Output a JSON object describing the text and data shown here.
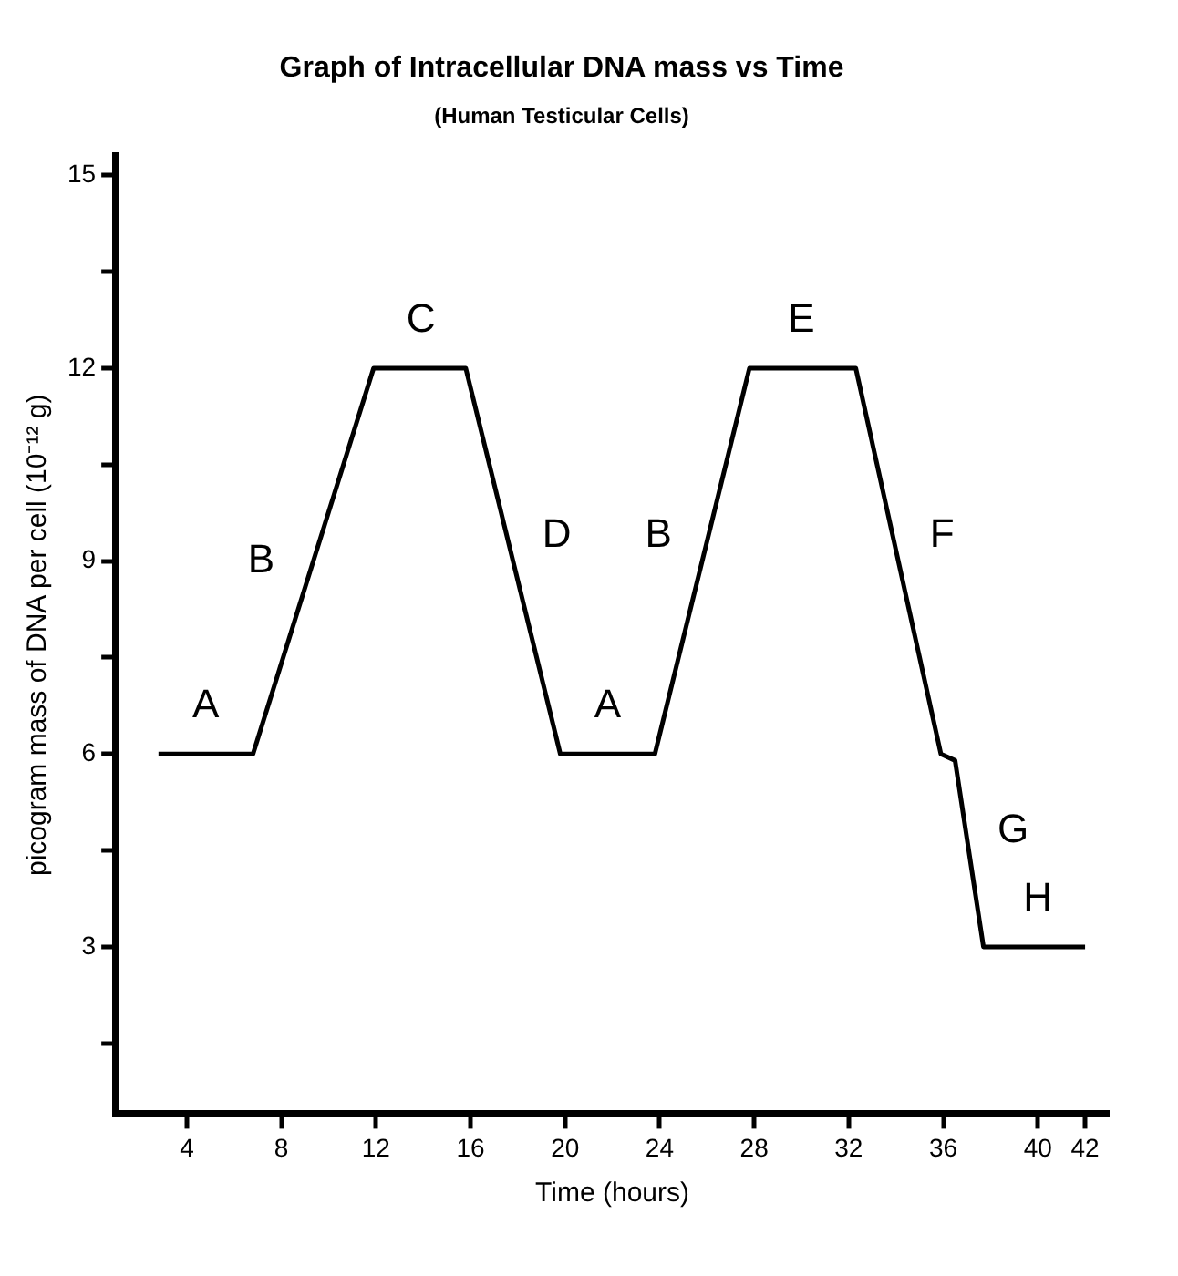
{
  "chart_data": {
    "type": "line",
    "title": "Graph of Intracellular DNA mass vs Time",
    "subtitle": "(Human Testicular Cells)",
    "xlabel": "Time (hours)",
    "ylabel": "picogram mass of DNA per cell (10⁻¹² g)",
    "x": [
      2.8,
      6.8,
      11.9,
      15.8,
      19.8,
      23.8,
      27.8,
      32.3,
      35.9,
      36.5,
      37.7,
      42
    ],
    "series": [
      {
        "color": "#000000",
        "values": [
          6,
          6,
          12,
          12,
          6,
          6,
          12,
          12,
          6,
          5.9,
          3,
          3
        ]
      }
    ],
    "xlim": [
      1,
      43
    ],
    "xticks": [
      4,
      8,
      12,
      16,
      20,
      24,
      28,
      32,
      36,
      40,
      42
    ],
    "ylim": [
      0.4,
      15.3
    ],
    "yticks": [
      {
        "value": 1.5,
        "label": null
      },
      3,
      {
        "value": 4.5,
        "label": null
      },
      6,
      {
        "value": 7.5,
        "label": null
      },
      9,
      {
        "value": 10.5,
        "label": null
      },
      12,
      {
        "value": 13.5,
        "label": null
      },
      15
    ],
    "grid": false,
    "legend": false,
    "marker": "none",
    "line_style": "solid",
    "annotations": [
      {
        "text": "A",
        "x": 4.8,
        "y": 6
      },
      {
        "text": "B",
        "x": 9,
        "y": 8.6
      },
      {
        "text": "C",
        "x": 13.9,
        "y": 12
      },
      {
        "text": "D",
        "x": 17.8,
        "y": 9
      },
      {
        "text": "A",
        "x": 21.8,
        "y": 6
      },
      {
        "text": "B",
        "x": 25.8,
        "y": 9
      },
      {
        "text": "E",
        "x": 30,
        "y": 12
      },
      {
        "text": "F",
        "x": 34.1,
        "y": 9
      },
      {
        "text": "G",
        "x": 37.1,
        "y": 4.4
      },
      {
        "text": "H",
        "x": 40,
        "y": 3
      }
    ]
  }
}
